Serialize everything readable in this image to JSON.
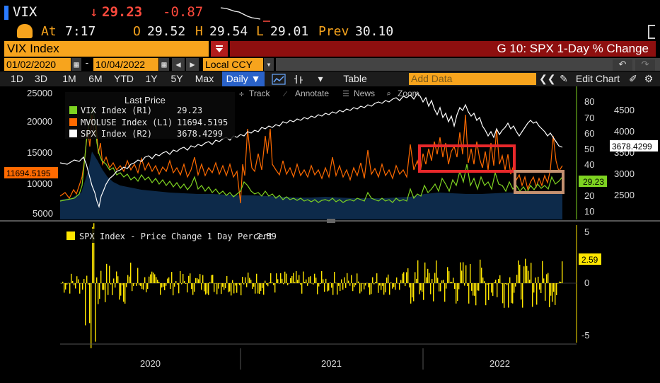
{
  "quote": {
    "ticker": "VIX",
    "arrow": "↓",
    "last": "29.23",
    "change": "-0.87",
    "at_label": "At",
    "time": "7:17",
    "open_label": "O",
    "open": "29.52",
    "high_label": "H",
    "high": "29.54",
    "low_label": "L",
    "low": "29.01",
    "prev_label": "Prev",
    "prev": "30.10"
  },
  "title_bar": {
    "security": "VIX Index",
    "chart_title": "G 10: SPX 1-Day % Change"
  },
  "date_row": {
    "start": "01/02/2020",
    "dash": "-",
    "end": "10/04/2022",
    "currency": "Local CCY"
  },
  "toolbar": {
    "periods": [
      "1D",
      "3D",
      "1M",
      "6M",
      "YTD",
      "1Y",
      "5Y",
      "Max"
    ],
    "frequency": "Daily ▼",
    "table": "Table",
    "add_data_placeholder": "Add Data",
    "edit_chart": "Edit Chart"
  },
  "chart_tools": {
    "track": "Track",
    "annotate": "Annotate",
    "news": "News",
    "zoom": "Zoom"
  },
  "legend": {
    "header": "Last Price",
    "items": [
      {
        "name": "VIX Index  (R1)",
        "value": "29.23",
        "color": "#7ed321"
      },
      {
        "name": "MVOLUSE Index  (L1)",
        "value": "11694.5195",
        "color": "#ff6a00"
      },
      {
        "name": "SPX Index  (R2)",
        "value": "3678.4299",
        "color": "#ffffff"
      }
    ]
  },
  "lower_legend": {
    "label": "SPX Index - Price Change 1 Day Percent",
    "value": "2.59",
    "color": "#ffe600"
  },
  "axes": {
    "left_ticks": [
      "25000",
      "20000",
      "15000",
      "10000",
      "5000"
    ],
    "right1_ticks": [
      "80",
      "70",
      "60",
      "50",
      "40",
      "30",
      "20",
      "10"
    ],
    "right2_ticks": [
      "4500",
      "4000",
      "3500",
      "3000",
      "2500"
    ],
    "lower_ticks": [
      "5",
      "0",
      "-5"
    ],
    "x_labels": [
      "2020",
      "2021",
      "2022"
    ],
    "mvoluse_tag": "11694.5195",
    "spx_tag": "3678.4299",
    "vix_tag": "29.23",
    "pct_tag": "2.59"
  },
  "colors": {
    "orange": "#f7a41d",
    "vix": "#7ed321",
    "mvoluse": "#ff6a00",
    "spx": "#ffffff",
    "pct": "#ffe600",
    "volume_fill": "#0d2a4a",
    "highlight_red": "#e8282b",
    "highlight_tan": "#c49070"
  }
}
